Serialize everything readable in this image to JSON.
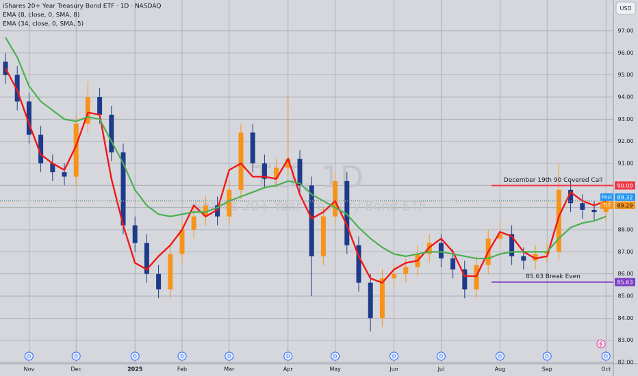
{
  "chart_data": {
    "type": "candlestick",
    "title": "iShares 20+ Year Treasury Bond ETF · 1D · NASDAQ",
    "watermark": "TLT, 1D",
    "watermark_subtitle": "iShares 20+ Year Treasury Bond ETF",
    "currency": "USD",
    "categories": [
      null,
      null,
      "Nov",
      null,
      null,
      null,
      "Dec",
      null,
      null,
      null,
      null,
      "2025",
      null,
      null,
      null,
      "Feb",
      null,
      null,
      null,
      "Mar",
      null,
      null,
      null,
      null,
      "Apr",
      null,
      null,
      null,
      "May",
      null,
      null,
      null,
      null,
      "Jun",
      null,
      null,
      null,
      "Jul",
      null,
      null,
      null,
      null,
      "Aug",
      null,
      null,
      null,
      "Sep",
      null,
      null,
      null,
      null,
      "Oct"
    ],
    "open": [
      95.6,
      95.0,
      93.8,
      92.3,
      91.0,
      90.6,
      90.4,
      92.8,
      94.0,
      93.2,
      91.5,
      88.2,
      87.4,
      86.0,
      85.3,
      86.9,
      88.0,
      88.6,
      89.1,
      88.6,
      89.8,
      92.4,
      91.0,
      90.3,
      90.8,
      91.2,
      90.0,
      86.8,
      88.6,
      90.2,
      87.3,
      85.6,
      84.0,
      85.8,
      86.0,
      86.3,
      86.9,
      87.4,
      86.7,
      86.2,
      85.3,
      86.4,
      87.6,
      87.8,
      86.8,
      86.6,
      86.9,
      87.0,
      89.8,
      89.2,
      88.9,
      88.8
    ],
    "high": [
      96.0,
      95.4,
      94.2,
      92.7,
      91.4,
      91.0,
      93.2,
      94.7,
      94.4,
      93.6,
      91.9,
      88.6,
      87.8,
      86.4,
      87.3,
      88.4,
      89.0,
      89.5,
      89.5,
      90.2,
      92.8,
      92.8,
      91.4,
      91.2,
      94.0,
      91.6,
      90.4,
      89.0,
      90.6,
      90.6,
      87.7,
      86.0,
      86.2,
      86.4,
      86.7,
      87.3,
      87.8,
      87.8,
      87.1,
      86.6,
      86.8,
      88.0,
      88.4,
      88.2,
      87.2,
      87.3,
      87.4,
      91.0,
      90.2,
      89.6,
      89.3,
      89.7
    ],
    "low": [
      94.6,
      93.4,
      91.9,
      90.6,
      90.2,
      90.0,
      90.0,
      92.4,
      92.8,
      91.1,
      87.8,
      87.0,
      85.6,
      84.9,
      84.9,
      86.5,
      87.6,
      88.2,
      88.2,
      88.2,
      89.4,
      90.6,
      89.9,
      89.9,
      90.4,
      89.6,
      85.0,
      86.4,
      88.2,
      86.9,
      85.2,
      83.4,
      83.6,
      85.4,
      85.6,
      85.9,
      86.5,
      86.3,
      85.8,
      84.9,
      84.9,
      86.0,
      87.2,
      86.4,
      86.2,
      86.2,
      86.5,
      86.6,
      88.8,
      88.5,
      88.4,
      88.4
    ],
    "close": [
      95.0,
      93.8,
      92.3,
      91.0,
      90.6,
      90.4,
      92.8,
      94.0,
      93.2,
      91.5,
      88.2,
      87.4,
      86.0,
      85.3,
      86.9,
      88.0,
      88.6,
      89.1,
      88.6,
      89.8,
      92.4,
      91.0,
      90.3,
      90.8,
      91.2,
      90.0,
      86.8,
      88.6,
      90.2,
      87.3,
      85.6,
      84.0,
      85.8,
      86.0,
      86.3,
      86.9,
      87.4,
      86.7,
      86.2,
      85.3,
      86.4,
      87.6,
      87.8,
      86.8,
      86.6,
      86.9,
      87.0,
      89.8,
      89.2,
      88.9,
      88.8,
      89.3
    ],
    "up_color": "#f7931a",
    "down_color": "#1e3a8a",
    "series": [
      {
        "name": "EMA (8, close, 0, SMA, 8)",
        "color": "#f01818",
        "values": [
          95.3,
          94.3,
          92.8,
          91.4,
          91.0,
          90.7,
          91.8,
          93.3,
          93.2,
          90.3,
          88.2,
          86.5,
          86.2,
          86.8,
          87.3,
          88.0,
          89.1,
          88.6,
          88.9,
          90.7,
          91.0,
          90.4,
          90.4,
          90.3,
          91.2,
          89.6,
          88.5,
          88.8,
          89.3,
          88.2,
          86.8,
          85.8,
          85.6,
          86.2,
          86.5,
          86.6,
          87.2,
          87.6,
          87.0,
          85.9,
          85.9,
          87.0,
          87.9,
          87.7,
          87.0,
          86.7,
          86.8,
          88.6,
          89.7,
          89.3,
          89.1,
          89.3
        ]
      },
      {
        "name": "EMA (34, close, 0, SMA, 5)",
        "color": "#4caf50",
        "values": [
          96.7,
          95.8,
          94.5,
          93.8,
          93.4,
          93.0,
          92.9,
          93.1,
          93.0,
          92.0,
          91.0,
          89.8,
          89.1,
          88.7,
          88.6,
          88.7,
          88.8,
          88.8,
          89.0,
          89.3,
          89.5,
          89.7,
          89.9,
          90.0,
          90.2,
          90.1,
          89.6,
          89.3,
          89.0,
          88.7,
          88.1,
          87.6,
          87.2,
          86.9,
          86.8,
          86.9,
          87.0,
          87.0,
          86.9,
          86.8,
          86.7,
          86.7,
          86.9,
          87.0,
          87.0,
          87.0,
          87.0,
          87.6,
          88.1,
          88.3,
          88.4,
          88.6
        ]
      }
    ],
    "ylim": [
      81.94,
      98.39
    ],
    "yticks": [
      {
        "value": 82,
        "label": "82.00"
      },
      {
        "value": 83,
        "label": "83.00"
      },
      {
        "value": 84,
        "label": "84.00"
      },
      {
        "value": 85,
        "label": "85.00"
      },
      {
        "value": 86,
        "label": "86.00"
      },
      {
        "value": 87,
        "label": "87.00"
      },
      {
        "value": 88,
        "label": "88.00"
      },
      {
        "value": 89,
        "label": "89.00"
      },
      {
        "value": 90,
        "label": "90.00"
      },
      {
        "value": 91,
        "label": "91.00"
      },
      {
        "value": 92,
        "label": "92.00"
      },
      {
        "value": 93,
        "label": "93.00"
      },
      {
        "value": 94,
        "label": "94.00"
      },
      {
        "value": 95,
        "label": "95.00"
      },
      {
        "value": 96,
        "label": "96.00"
      },
      {
        "value": 97,
        "label": "97.00"
      }
    ],
    "grid": true,
    "hlines": [
      {
        "name": "December 19th 90 Covered Call",
        "value": 90,
        "label": "90.00",
        "color": "#f23645"
      },
      {
        "name": "85.63 Break Even",
        "value": 85.63,
        "label": "85.63",
        "color": "#7e3fc4"
      }
    ],
    "price_tags": [
      {
        "name": "Post",
        "value": 89.32,
        "label": "89.32",
        "color": "#2196f3"
      },
      {
        "name": "TLT",
        "value": 89.29,
        "label": "89.29",
        "color": "#f7931a"
      }
    ],
    "dividend_marker": "D"
  }
}
